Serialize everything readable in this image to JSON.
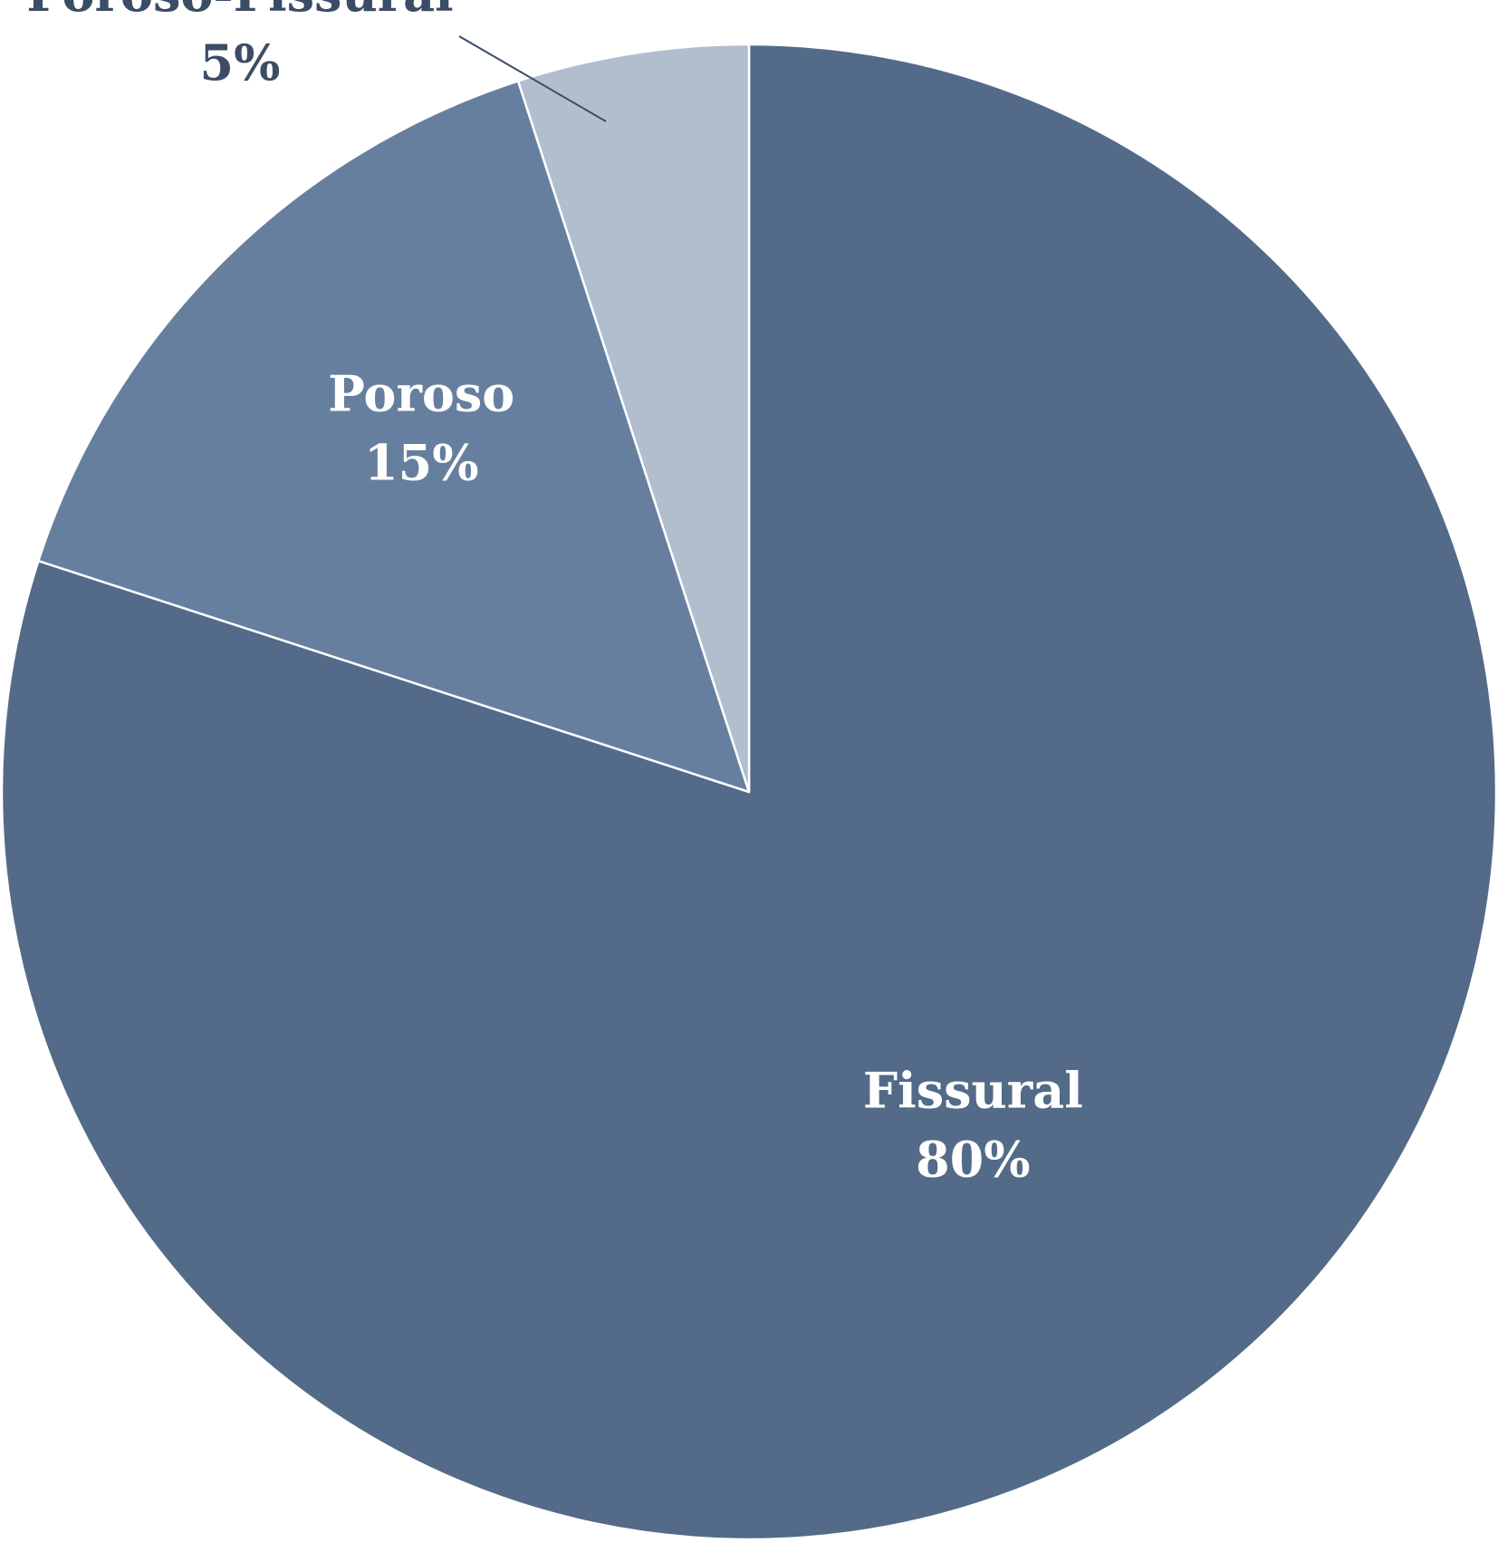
{
  "chart_data": {
    "type": "pie",
    "start": "top",
    "direction": "clockwise",
    "categories": [
      "Fissural",
      "Poroso",
      "Poroso-Fissural"
    ],
    "values": [
      80,
      15,
      5
    ],
    "labels": [
      {
        "name": "Fissural",
        "value": "80%"
      },
      {
        "name": "Poroso",
        "value": "15%"
      },
      {
        "name": "Poroso-Fissural",
        "value": "5%"
      }
    ],
    "colors": [
      "#536a88",
      "#677f9f",
      "#b1bece"
    ],
    "label_colors": [
      "#ffffff",
      "#ffffff",
      "#3c4c65"
    ],
    "leader_line_color": "#3c4c65",
    "slice_border_color": "#ffffff",
    "legend": "none"
  }
}
